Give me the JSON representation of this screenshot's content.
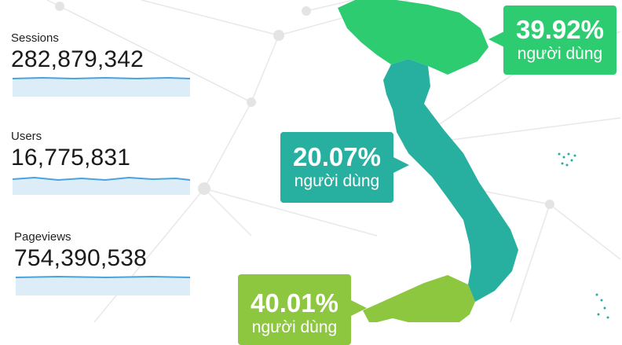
{
  "metrics": [
    {
      "label": "Sessions",
      "value": "282,879,342"
    },
    {
      "label": "Users",
      "value": "16,775,831"
    },
    {
      "label": "Pageviews",
      "value": "754,390,538"
    }
  ],
  "regions": {
    "north": {
      "percent": "39.92%",
      "label": "người dùng",
      "color": "#2ecc71"
    },
    "central": {
      "percent": "20.07%",
      "label": "người dùng",
      "color": "#27b0a0"
    },
    "south": {
      "percent": "40.01%",
      "label": "người dùng",
      "color": "#8dc63f"
    }
  },
  "colors": {
    "sparkline": "#4aa3df",
    "sparkfill": "#dcedf8",
    "network": "#e6e6e6"
  }
}
